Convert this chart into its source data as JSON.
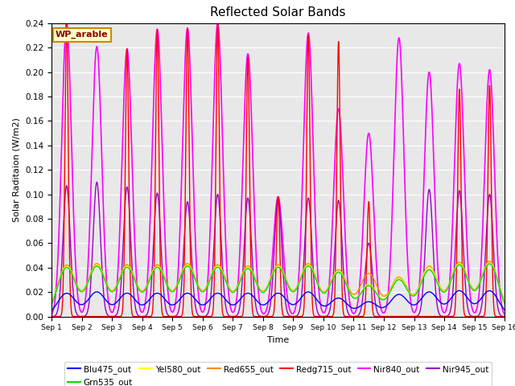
{
  "title": "Reflected Solar Bands",
  "xlabel": "Time",
  "ylabel": "Solar Raditaion (W/m2)",
  "ylim": [
    0,
    0.24
  ],
  "yticks": [
    0.0,
    0.02,
    0.04,
    0.06,
    0.08,
    0.1,
    0.12,
    0.14,
    0.16,
    0.18,
    0.2,
    0.22,
    0.24
  ],
  "annotation": "WP_arable",
  "background_color": "#e8e8e8",
  "series": [
    {
      "name": "Blu475_out",
      "color": "#0000ff",
      "lw": 1.0
    },
    {
      "name": "Grn535_out",
      "color": "#00dd00",
      "lw": 1.0
    },
    {
      "name": "Yel580_out",
      "color": "#ffff00",
      "lw": 1.0
    },
    {
      "name": "Red655_out",
      "color": "#ff8800",
      "lw": 1.0
    },
    {
      "name": "Redg715_out",
      "color": "#ff0000",
      "lw": 1.0
    },
    {
      "name": "Nir840_out",
      "color": "#ff00ff",
      "lw": 1.2
    },
    {
      "name": "Nir945_out",
      "color": "#9900cc",
      "lw": 1.0
    }
  ],
  "n_days": 15,
  "pts_per_day": 500,
  "day_sigma": 0.35,
  "peaks": [
    {
      "day": 1,
      "blu": 0.019,
      "grn": 0.04,
      "yel": 0.041,
      "red": 0.042,
      "redg": 0.24,
      "nir8": 0.24,
      "nir9": 0.107
    },
    {
      "day": 2,
      "blu": 0.02,
      "grn": 0.041,
      "yel": 0.042,
      "red": 0.043,
      "redg": 0.0,
      "nir8": 0.221,
      "nir9": 0.11
    },
    {
      "day": 3,
      "blu": 0.019,
      "grn": 0.04,
      "yel": 0.041,
      "red": 0.042,
      "redg": 0.219,
      "nir8": 0.219,
      "nir9": 0.106
    },
    {
      "day": 4,
      "blu": 0.019,
      "grn": 0.04,
      "yel": 0.041,
      "red": 0.042,
      "redg": 0.235,
      "nir8": 0.235,
      "nir9": 0.101
    },
    {
      "day": 5,
      "blu": 0.019,
      "grn": 0.041,
      "yel": 0.042,
      "red": 0.043,
      "redg": 0.236,
      "nir8": 0.236,
      "nir9": 0.094
    },
    {
      "day": 6,
      "blu": 0.019,
      "grn": 0.04,
      "yel": 0.041,
      "red": 0.042,
      "redg": 0.24,
      "nir8": 0.24,
      "nir9": 0.1
    },
    {
      "day": 7,
      "blu": 0.019,
      "grn": 0.039,
      "yel": 0.04,
      "red": 0.041,
      "redg": 0.212,
      "nir8": 0.215,
      "nir9": 0.097
    },
    {
      "day": 8,
      "blu": 0.019,
      "grn": 0.04,
      "yel": 0.041,
      "red": 0.042,
      "redg": 0.098,
      "nir8": 0.098,
      "nir9": 0.097
    },
    {
      "day": 9,
      "blu": 0.02,
      "grn": 0.041,
      "yel": 0.042,
      "red": 0.043,
      "redg": 0.23,
      "nir8": 0.232,
      "nir9": 0.097
    },
    {
      "day": 10,
      "blu": 0.015,
      "grn": 0.036,
      "yel": 0.037,
      "red": 0.038,
      "redg": 0.225,
      "nir8": 0.17,
      "nir9": 0.095
    },
    {
      "day": 11,
      "blu": 0.012,
      "grn": 0.025,
      "yel": 0.026,
      "red": 0.035,
      "redg": 0.094,
      "nir8": 0.15,
      "nir9": 0.06
    },
    {
      "day": 12,
      "blu": 0.018,
      "grn": 0.03,
      "yel": 0.031,
      "red": 0.032,
      "redg": 0.0,
      "nir8": 0.228,
      "nir9": 0.0
    },
    {
      "day": 13,
      "blu": 0.02,
      "grn": 0.038,
      "yel": 0.04,
      "red": 0.041,
      "redg": 0.0,
      "nir8": 0.2,
      "nir9": 0.104
    },
    {
      "day": 14,
      "blu": 0.021,
      "grn": 0.042,
      "yel": 0.043,
      "red": 0.044,
      "redg": 0.186,
      "nir8": 0.207,
      "nir9": 0.103
    },
    {
      "day": 15,
      "blu": 0.021,
      "grn": 0.043,
      "yel": 0.044,
      "red": 0.045,
      "redg": 0.189,
      "nir8": 0.202,
      "nir9": 0.1
    }
  ]
}
